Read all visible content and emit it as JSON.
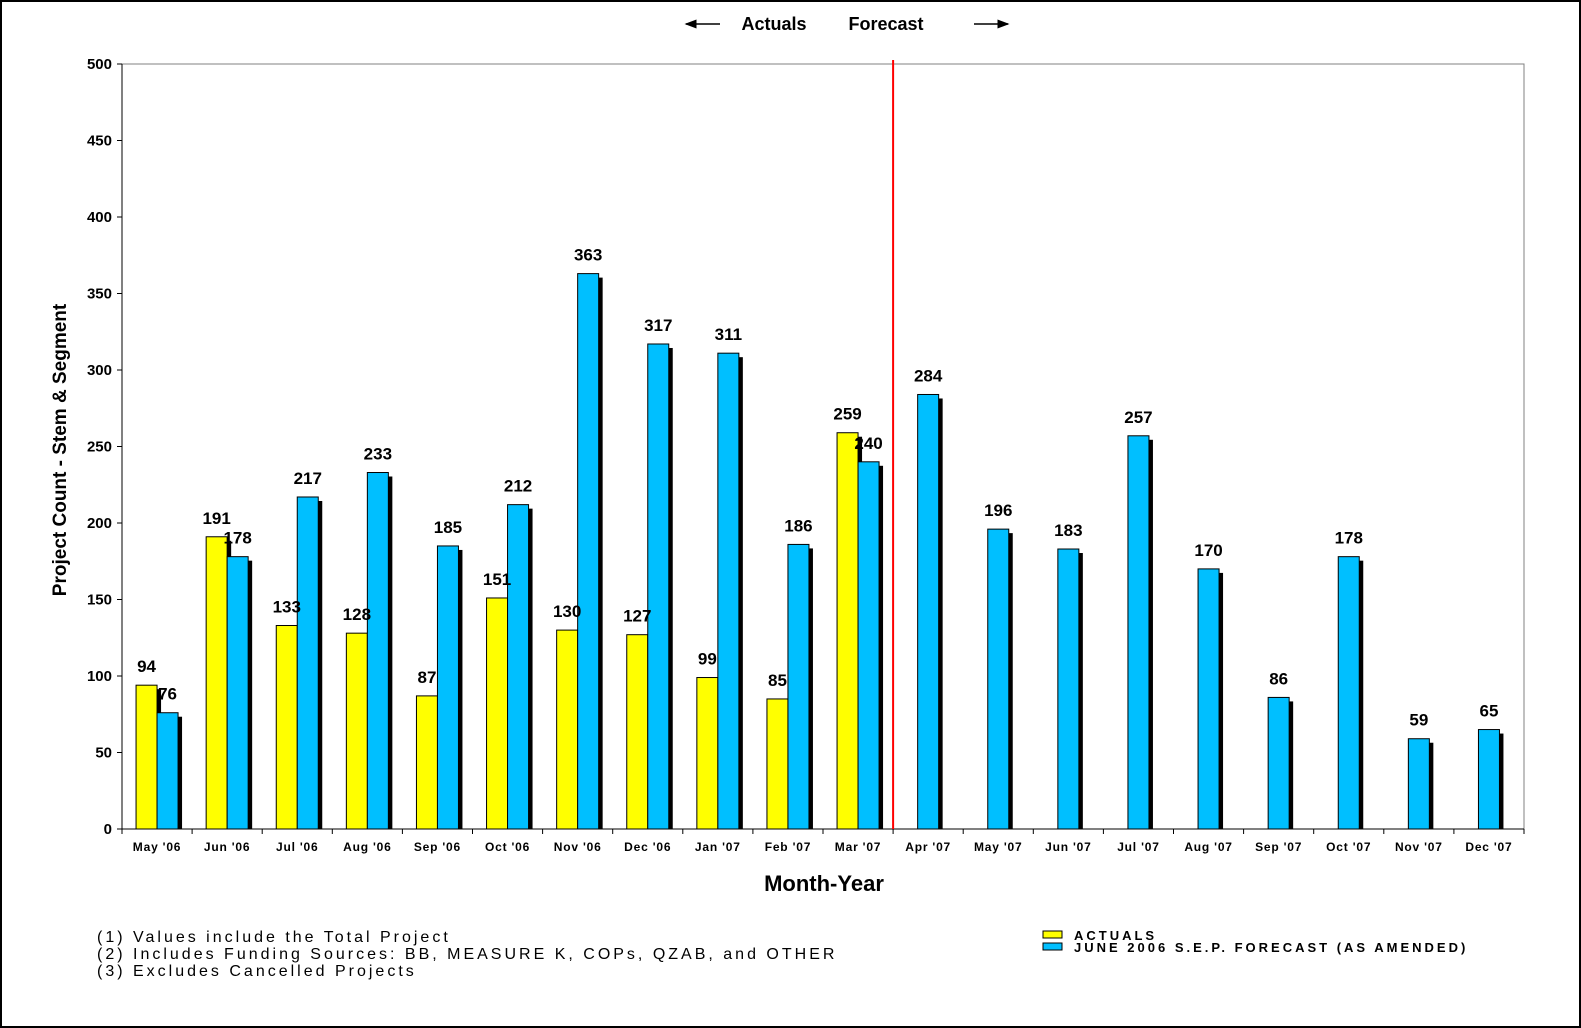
{
  "chart_data": {
    "type": "bar",
    "title": "",
    "period_labels": {
      "actuals": "Actuals",
      "forecast": "Forecast"
    },
    "xlabel": "Month-Year",
    "ylabel": "Project Count - Stem & Segment",
    "ylim": [
      0,
      500
    ],
    "yticks": [
      0,
      50,
      100,
      150,
      200,
      250,
      300,
      350,
      400,
      450,
      500
    ],
    "grid": false,
    "legend_position": "bottom-right",
    "forecast_divider_after": "Mar '07",
    "categories": [
      "May '06",
      "Jun '06",
      "Jul '06",
      "Aug '06",
      "Sep '06",
      "Oct '06",
      "Nov '06",
      "Dec '06",
      "Jan '07",
      "Feb '07",
      "Mar '07",
      "Apr '07",
      "May '07",
      "Jun '07",
      "Jul '07",
      "Aug '07",
      "Sep '07",
      "Oct '07",
      "Nov '07",
      "Dec '07"
    ],
    "series": [
      {
        "name": "ACTUALS",
        "color": "#ffff00",
        "values": [
          94,
          191,
          133,
          128,
          87,
          151,
          130,
          127,
          99,
          85,
          259,
          null,
          null,
          null,
          null,
          null,
          null,
          null,
          null,
          null
        ]
      },
      {
        "name": "JUNE 2006 S.E.P. FORECAST (AS AMENDED)",
        "color": "#00bfff",
        "values": [
          76,
          178,
          217,
          233,
          185,
          212,
          363,
          317,
          311,
          186,
          240,
          284,
          196,
          183,
          257,
          170,
          86,
          178,
          59,
          65
        ]
      }
    ],
    "divider_color": "#ff0000"
  },
  "notes": [
    "(1) Values include the Total Project",
    "(2) Includes Funding Sources: BB, MEASURE K, COPs, QZAB, and OTHER",
    "(3) Excludes Cancelled Projects"
  ]
}
